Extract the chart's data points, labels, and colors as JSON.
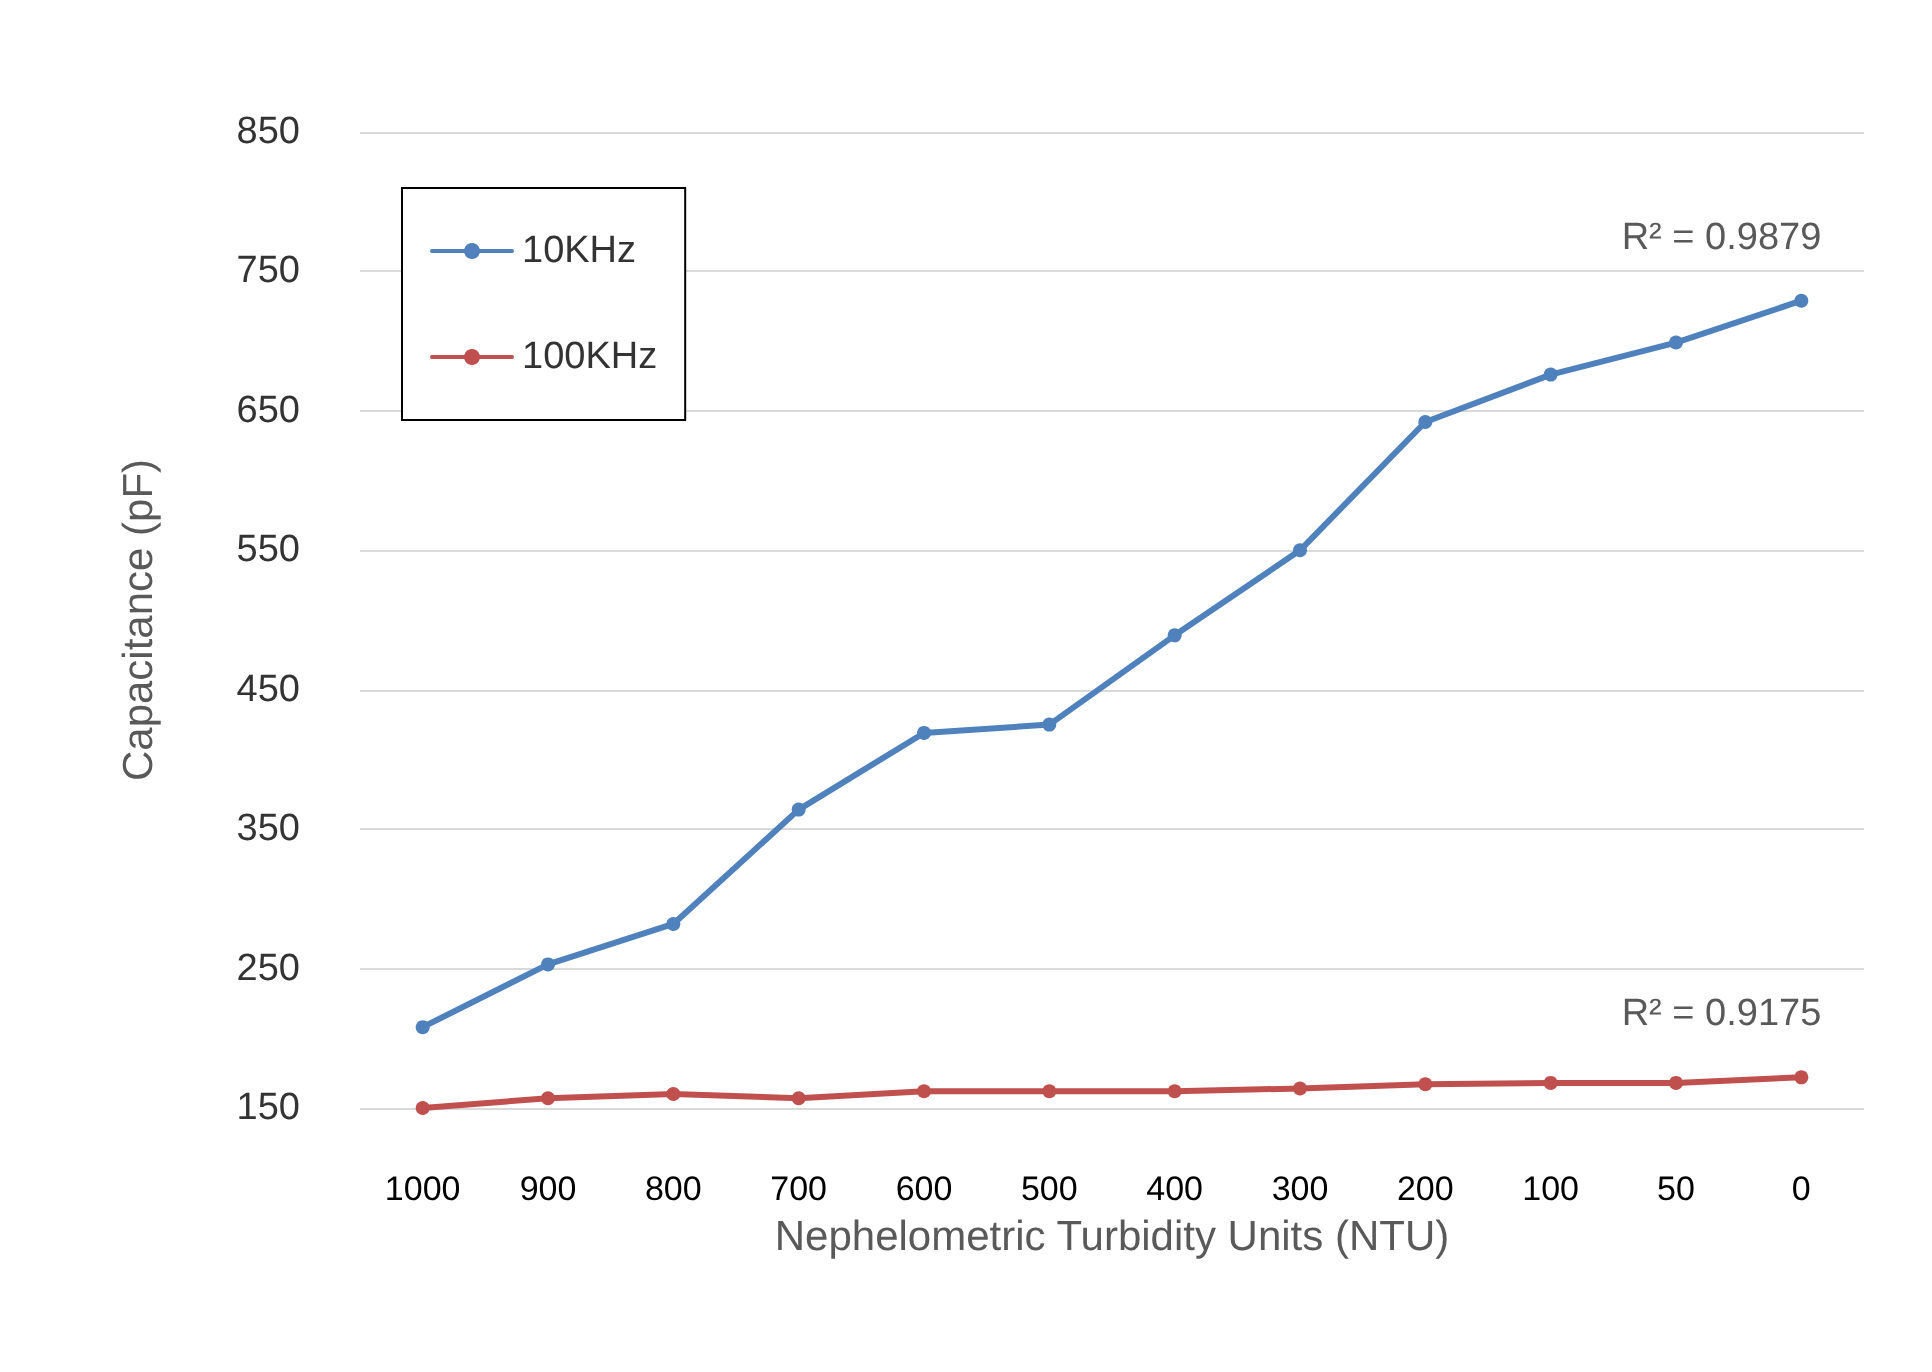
{
  "chart_data": {
    "type": "line",
    "xlabel": "Nephelometric Turbidity Units (NTU)",
    "ylabel": "Capacitance (pF)",
    "categories": [
      "1000",
      "900",
      "800",
      "700",
      "600",
      "500",
      "400",
      "300",
      "200",
      "100",
      "50",
      "0"
    ],
    "series": [
      {
        "name": "10KHz",
        "color": "#4f81bd",
        "values": [
          208,
          253,
          282,
          364,
          419,
          425,
          489,
          550,
          642,
          676,
          699,
          729
        ]
      },
      {
        "name": "100KHz",
        "color": "#c0504d",
        "values": [
          150,
          157,
          160,
          157,
          162,
          162,
          162,
          164,
          167,
          168,
          168,
          172
        ]
      }
    ],
    "ylim": [
      150,
      850
    ],
    "yticks": [
      150,
      250,
      350,
      450,
      550,
      650,
      750,
      850
    ],
    "annotations": [
      {
        "text": "R² = 0.9879",
        "x": "0",
        "y": 729
      },
      {
        "text": "R² = 0.9175",
        "x": "0",
        "y": 172
      }
    ],
    "grid": "y",
    "legend": "top left",
    "marker": "circle",
    "line_style": "solid"
  }
}
